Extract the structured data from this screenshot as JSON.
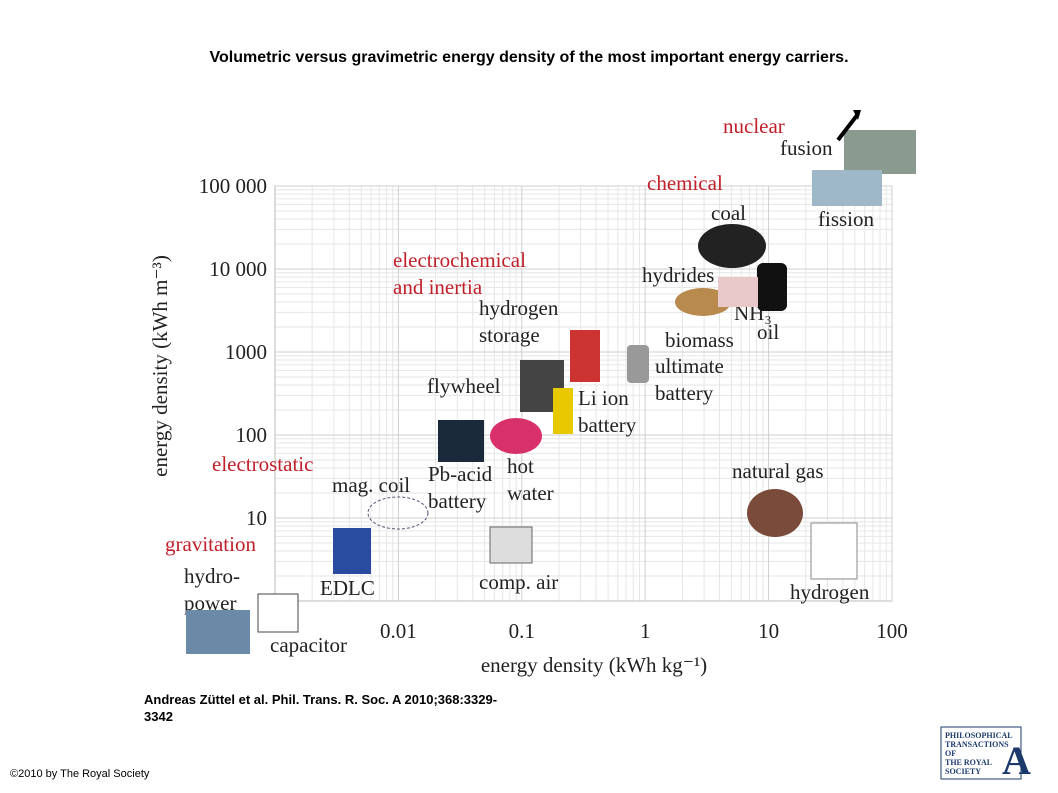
{
  "title": "Volumetric versus gravimetric energy density of the most important energy carriers.",
  "citation": "Andreas Züttel et al. Phil. Trans. R. Soc. A 2010;368:3329-3342",
  "copyright": "©2010 by The Royal Society",
  "logo": [
    "PHILOSOPHICAL",
    "TRANSACTIONS",
    "OF",
    "THE ROYAL",
    "SOCIETY",
    "A"
  ],
  "chart_data": {
    "type": "annotated-plane",
    "xlabel": "energy density (kWh kg⁻¹)",
    "ylabel": "energy density (kWh m⁻³)",
    "xlog": true,
    "ylog": true,
    "grid": true,
    "xlim": [
      0.001,
      100
    ],
    "ylim": [
      1,
      100000
    ],
    "xticks": [
      0.01,
      0.1,
      1,
      10,
      100
    ],
    "yticks": [
      {
        "value": 100000,
        "label": "100 000"
      },
      {
        "value": 10000,
        "label": "10 000"
      },
      1000,
      100,
      10
    ],
    "annotations": [
      {
        "lines": [
          "nuclear"
        ],
        "color": "#c0202a"
      },
      {
        "lines": [
          "chemical"
        ],
        "color": "#c0202a"
      },
      {
        "lines": [
          "electrochemical",
          "and inertia"
        ],
        "color": "#c0202a"
      },
      {
        "lines": [
          "electrostatic"
        ],
        "color": "#c0202a"
      },
      {
        "lines": [
          "gravitation"
        ],
        "color": "#c0202a"
      },
      {
        "lines": [
          "fusion"
        ],
        "color": "#222222"
      },
      {
        "lines": [
          "fission"
        ],
        "color": "#222222"
      },
      {
        "lines": [
          "coal"
        ],
        "color": "#222222"
      },
      {
        "lines": [
          "hydrides"
        ],
        "color": "#222222"
      },
      {
        "lines": [
          "NH₃"
        ],
        "color": "#222222"
      },
      {
        "lines": [
          "oil"
        ],
        "color": "#222222"
      },
      {
        "lines": [
          "biomass"
        ],
        "color": "#222222"
      },
      {
        "lines": [
          "hydrogen",
          "storage"
        ],
        "color": "#222222"
      },
      {
        "lines": [
          "flywheel"
        ],
        "color": "#222222"
      },
      {
        "lines": [
          "ultimate",
          "battery"
        ],
        "color": "#222222"
      },
      {
        "lines": [
          "Li ion",
          "battery"
        ],
        "color": "#222222"
      },
      {
        "lines": [
          "hot",
          "water"
        ],
        "color": "#222222"
      },
      {
        "lines": [
          "Pb-acid",
          "battery"
        ],
        "color": "#222222"
      },
      {
        "lines": [
          "mag. coil"
        ],
        "color": "#222222"
      },
      {
        "lines": [
          "EDLC"
        ],
        "color": "#222222"
      },
      {
        "lines": [
          "comp. air"
        ],
        "color": "#222222"
      },
      {
        "lines": [
          "hydro-",
          "power"
        ],
        "color": "#222222"
      },
      {
        "lines": [
          "capacitor"
        ],
        "color": "#222222"
      },
      {
        "lines": [
          "natural gas"
        ],
        "color": "#222222"
      },
      {
        "lines": [
          "hydrogen"
        ],
        "color": "#222222"
      }
    ]
  }
}
